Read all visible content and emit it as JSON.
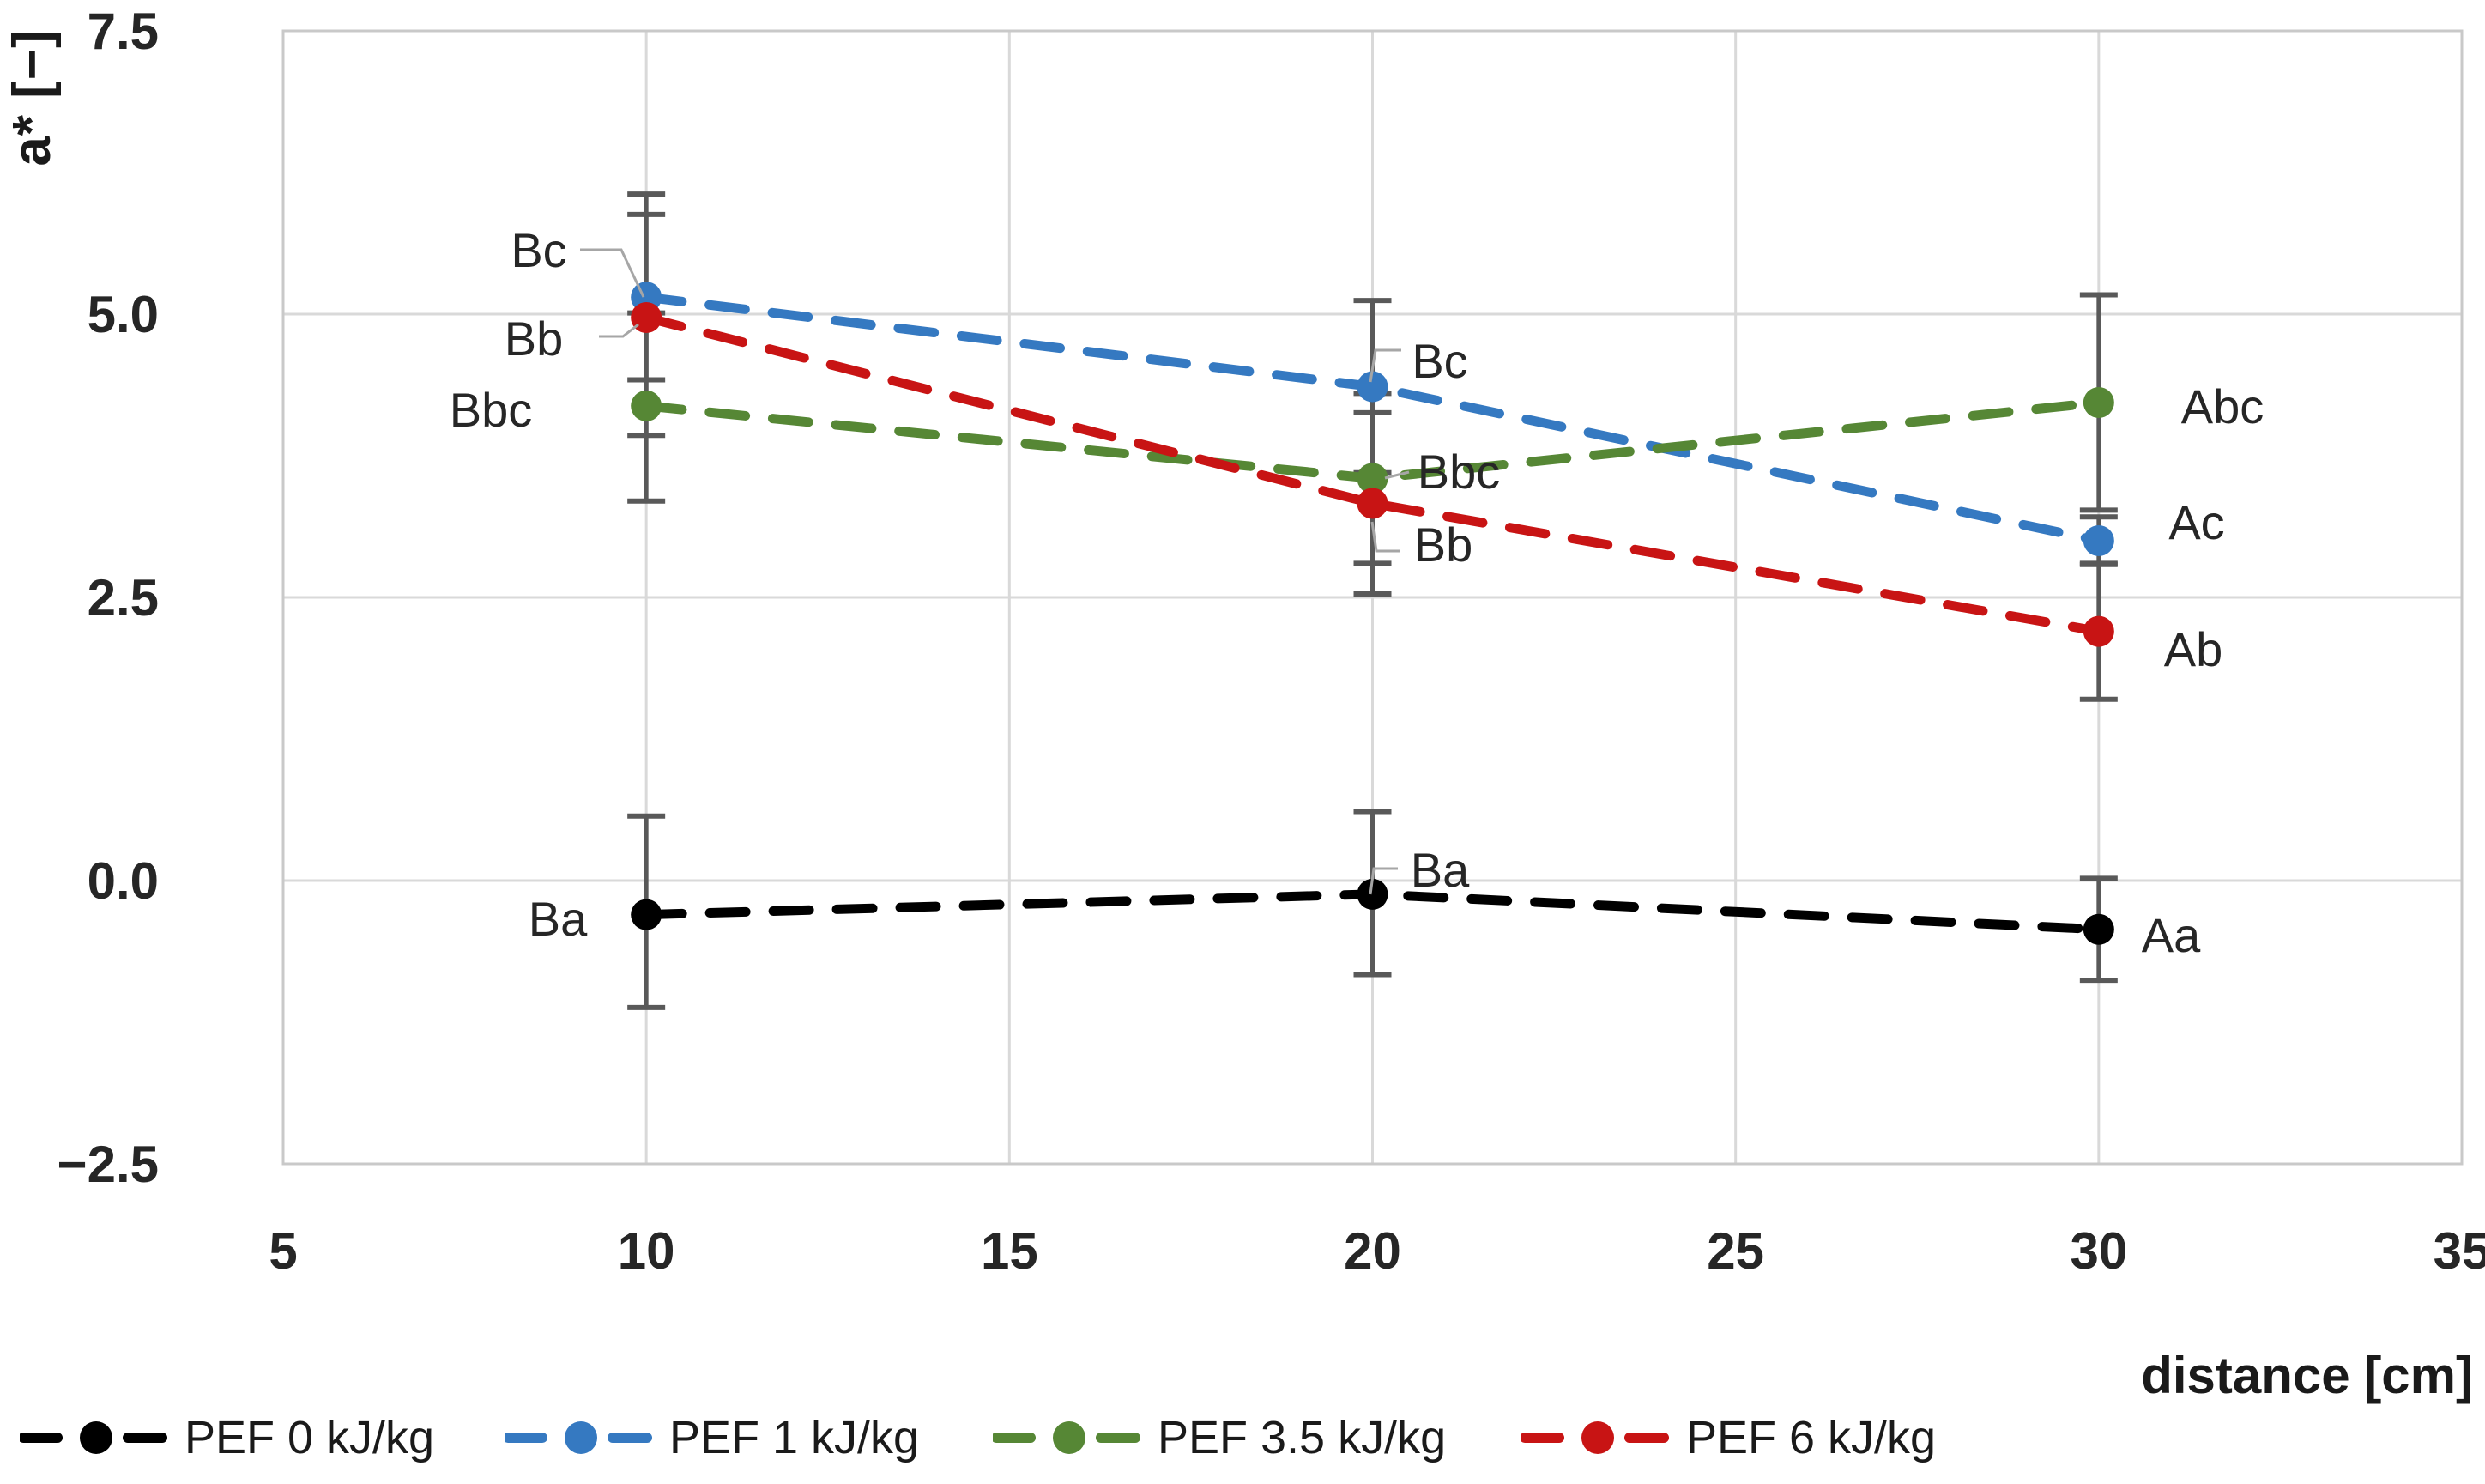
{
  "chart_data": {
    "type": "line",
    "title": "",
    "x_axis": {
      "title": "distance [cm]",
      "min": 5,
      "max": 35,
      "ticks": [
        5,
        10,
        15,
        20,
        25,
        30,
        35
      ],
      "tick_labels": [
        "5",
        "10",
        "15",
        "20",
        "25",
        "30",
        "35"
      ]
    },
    "y_axis": {
      "title": "a* [−]",
      "min": -2.5,
      "max": 7.5,
      "ticks": [
        7.5,
        5.0,
        2.5,
        0.0,
        -2.5
      ],
      "tick_labels": [
        "7.5",
        "5.0",
        "2.5",
        "0.0",
        "−2.5"
      ]
    },
    "grid": true,
    "legend_position": "bottom",
    "x": [
      10,
      20,
      30
    ],
    "series": [
      {
        "name": "PEF 0 kJ/kg",
        "color": "#000000",
        "values": [
          -0.3,
          -0.12,
          -0.43
        ],
        "errors_up": [
          0.87,
          0.73,
          0.45
        ],
        "errors_down": [
          0.82,
          0.71,
          0.45
        ],
        "point_labels": [
          "Ba",
          "Ba",
          "Aa"
        ]
      },
      {
        "name": "PEF 1 kJ/kg",
        "color": "#3579C1",
        "values": [
          5.15,
          4.36,
          3.0
        ],
        "errors_up": [
          0.91,
          0.76,
          0.21
        ],
        "errors_down": [
          0.73,
          0.76,
          0.21
        ],
        "point_labels": [
          "Bc",
          "Bc",
          "Ac"
        ]
      },
      {
        "name": "PEF 3.5 kJ/kg",
        "color": "#568735",
        "values": [
          4.19,
          3.55,
          4.22
        ],
        "errors_up": [
          0.82,
          0.75,
          0.95
        ],
        "errors_down": [
          0.84,
          0.75,
          0.95
        ],
        "point_labels": [
          "Bbc",
          "Bbc",
          "Abc"
        ]
      },
      {
        "name": "PEF 6 kJ/kg",
        "color": "#C81414",
        "values": [
          4.97,
          3.33,
          2.2
        ],
        "errors_up": [
          0.91,
          0.8,
          0.6
        ],
        "errors_down": [
          1.04,
          0.8,
          0.6
        ],
        "point_labels": [
          "Bb",
          "Bb",
          "Ab"
        ]
      }
    ],
    "styles": {
      "gridline_color": "#D9D9D9",
      "border_color": "#C9C9C9",
      "error_bar_color": "#595959",
      "leader_color": "#A6A6A6",
      "label_color": "#262626",
      "tick_color": "#262626"
    }
  }
}
